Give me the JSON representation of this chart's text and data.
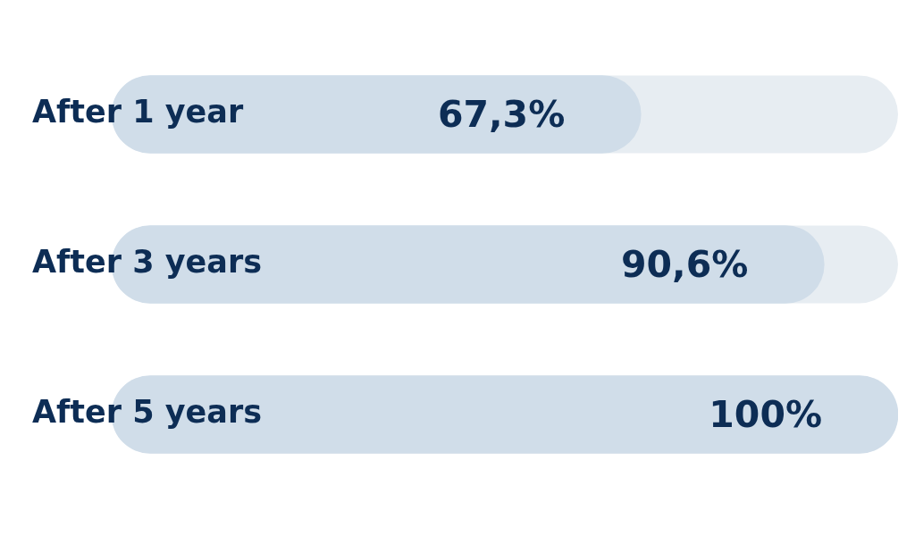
{
  "chart_data": {
    "type": "bar",
    "orientation": "horizontal",
    "categories": [
      "After 1 year",
      "After 3 years",
      "After 5 years"
    ],
    "values": [
      67.3,
      90.6,
      100
    ],
    "value_labels": [
      "67,3%",
      "90,6%",
      "100%"
    ],
    "color": "#d0dde9",
    "xlim": [
      0,
      100
    ]
  }
}
